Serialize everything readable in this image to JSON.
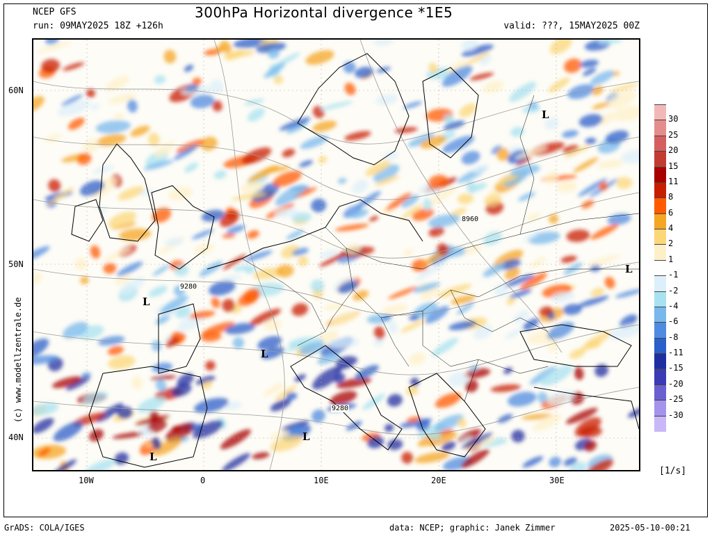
{
  "header": {
    "model": "NCEP GFS",
    "run": "run: 09MAY2025 18Z +126h",
    "title": "300hPa Horizontal divergence *1E5",
    "valid": "valid: ???, 15MAY2025 00Z"
  },
  "axes": {
    "lat_labels": [
      "60N",
      "50N",
      "40N"
    ],
    "lon_labels": [
      "10W",
      "0",
      "10E",
      "20E",
      "30E"
    ]
  },
  "map_labels": {
    "contour_labels": [
      "9280",
      "9280",
      "8960"
    ],
    "low_markers": [
      "L",
      "L",
      "L",
      "L",
      "L",
      "L"
    ]
  },
  "colorbar": {
    "labels": [
      "30",
      "25",
      "20",
      "15",
      "11",
      "8",
      "6",
      "4",
      "2",
      "1",
      "-1",
      "-2",
      "-4",
      "-6",
      "-8",
      "-11",
      "-15",
      "-20",
      "-25",
      "-30"
    ],
    "colors": [
      "#f2b8b8",
      "#e58c8c",
      "#d65e5e",
      "#c23c34",
      "#a80000",
      "#c81e00",
      "#ff5a00",
      "#f5a623",
      "#fbd77a",
      "#fdf0c8",
      "#ffffff",
      "#dceffa",
      "#a8e2f0",
      "#78b8ec",
      "#4f8be0",
      "#2b5fc9",
      "#1f2fa0",
      "#3b3bb4",
      "#6a5fd0",
      "#a494ec",
      "#c8b8f8"
    ],
    "unit": "[1/s]"
  },
  "credit": "(c) www.modellzentrale.de",
  "footer": {
    "left": "GrADS: COLA/IGES",
    "mid": "data: NCEP; graphic: Janek Zimmer",
    "right": "2025-05-10-00:21"
  }
}
